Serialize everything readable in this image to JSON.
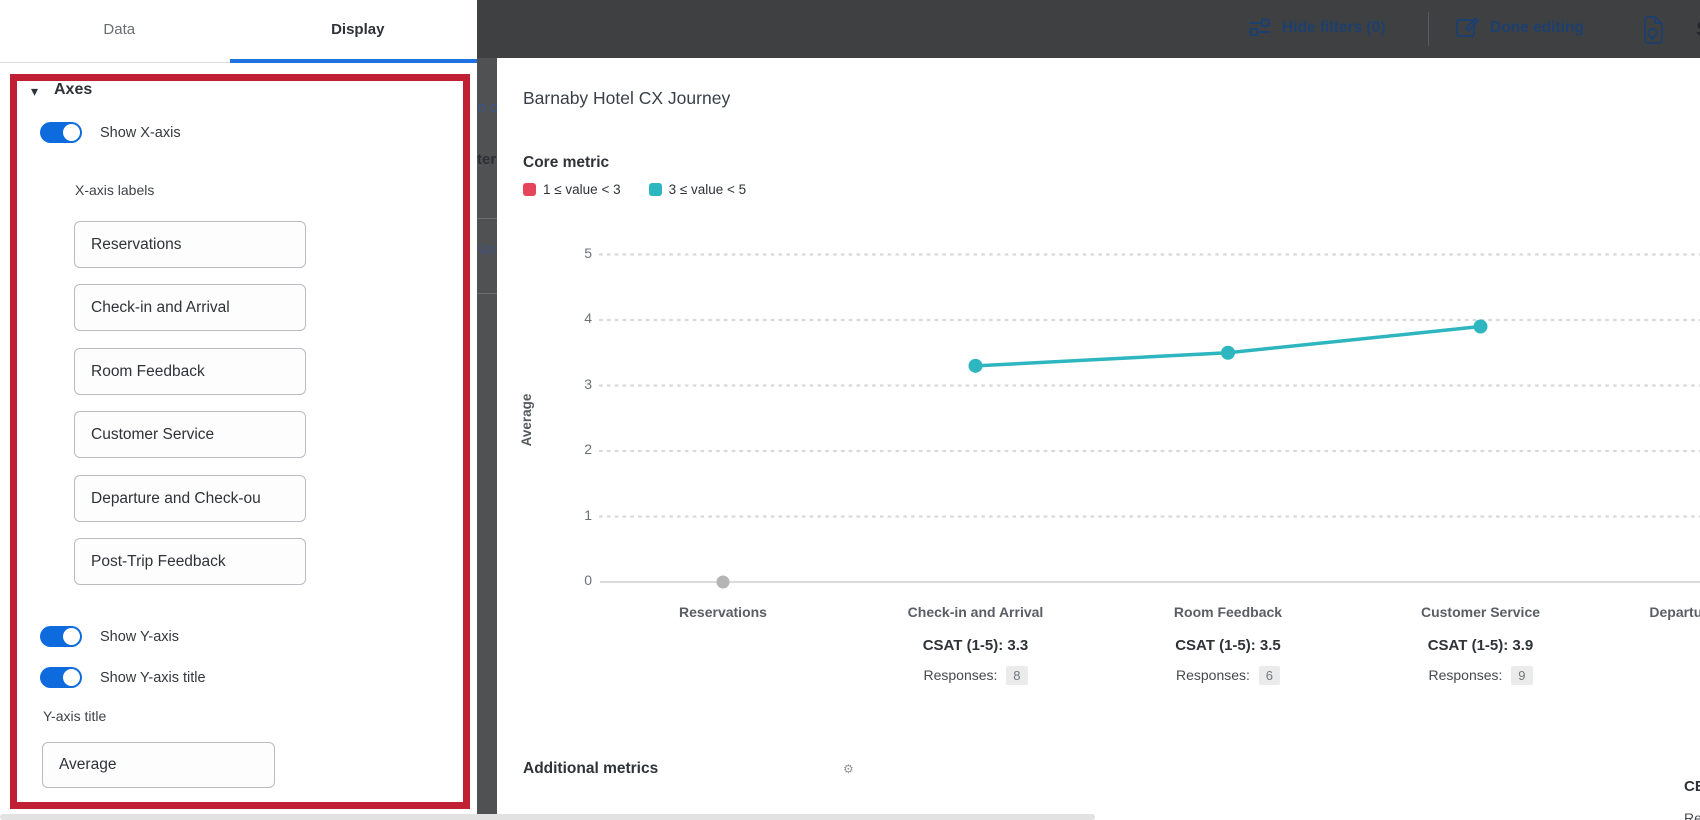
{
  "panel": {
    "tabs": {
      "data_label": "Data",
      "display_label": "Display"
    },
    "axes": {
      "header": "Axes",
      "show_x_axis_label": "Show X-axis",
      "x_axis_labels_heading": "X-axis labels",
      "x_axis_inputs": [
        "Reservations",
        "Check-in and Arrival",
        "Room Feedback",
        "Customer Service",
        "Departure and Check-ou",
        "Post-Trip Feedback"
      ],
      "show_y_axis_label": "Show Y-axis",
      "show_y_axis_title_label": "Show Y-axis title",
      "y_axis_title_heading": "Y-axis title",
      "y_axis_title_value": "Average"
    }
  },
  "topbar": {
    "hide_filters_label": "Hide filters (0)",
    "done_editing_label": "Done editing"
  },
  "background_fragments": {
    "frag1": "n o",
    "frag2": "ter",
    "frag3": "Nov"
  },
  "card": {
    "title": "Barnaby Hotel CX Journey",
    "core_metric_heading": "Core metric",
    "legend": [
      {
        "label": "1 ≤ value < 3",
        "color": "#e64459"
      },
      {
        "label": "3 ≤ value < 5",
        "color": "#2bb7c0"
      }
    ],
    "additional_metrics_heading": "Additional metrics",
    "edge_fragments": {
      "metric": "CE",
      "responses": "Re"
    }
  },
  "chart_data": {
    "type": "line",
    "title": "Barnaby Hotel CX Journey",
    "section": "Core metric",
    "categories": [
      "Reservations",
      "Check-in and Arrival",
      "Room Feedback",
      "Customer Service",
      "Departure and Check-out"
    ],
    "series": [
      {
        "name": "CSAT (1-5)",
        "values": [
          null,
          3.3,
          3.5,
          3.9,
          null
        ]
      }
    ],
    "responses": [
      null,
      8,
      6,
      9,
      null
    ],
    "responses_label": "Responses:",
    "ylabel": "Average",
    "ylim": [
      0,
      5
    ],
    "yticks": [
      0,
      1,
      2,
      3,
      4,
      5
    ],
    "grid": "dotted-horizontal",
    "legend_position": "top-left",
    "line_color": "#2db6bf",
    "no_data_color": "#b4b4b4",
    "accent_toggle_blue": "#0d6bdd",
    "highlight_border_red": "#c11f33"
  }
}
